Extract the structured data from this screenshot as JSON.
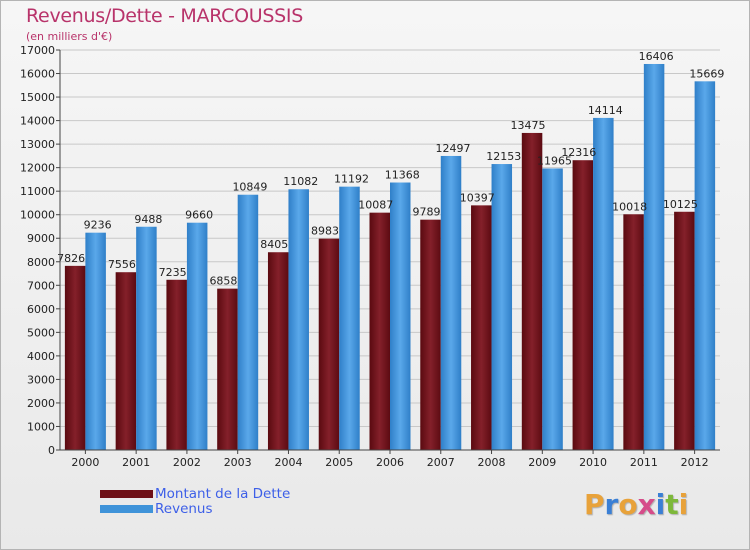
{
  "title": "Revenus/Dette - MARCOUSSIS",
  "subtitle": "(en milliers d'€)",
  "logo": {
    "letters": [
      "P",
      "r",
      "o",
      "x",
      "i",
      "t",
      "i"
    ],
    "colors": [
      "#e8a23a",
      "#3a7fd5",
      "#e8a23a",
      "#d64c8a",
      "#3a7fd5",
      "#7db83a",
      "#e8a23a"
    ]
  },
  "chart_data": {
    "type": "bar",
    "categories": [
      "2000",
      "2001",
      "2002",
      "2003",
      "2004",
      "2005",
      "2006",
      "2007",
      "2008",
      "2009",
      "2010",
      "2011",
      "2012"
    ],
    "series": [
      {
        "name": "Montant de la Dette",
        "color": "#6e1016",
        "values": [
          7826,
          7556,
          7235,
          6858,
          8405,
          8983,
          10087,
          9789,
          10397,
          13475,
          12316,
          10018,
          10125
        ],
        "labels": [
          "7826",
          "7556",
          "7235",
          "6858",
          "8405",
          "8983",
          "10087",
          "9789",
          "10397",
          "13475",
          "12316",
          "10018",
          "10125"
        ]
      },
      {
        "name": "Revenus",
        "color": "#3f93d9",
        "values": [
          9236,
          9488,
          9660,
          10849,
          11082,
          11192,
          11368,
          12497,
          12153,
          11965,
          14114,
          16406,
          15669
        ],
        "labels": [
          "9236",
          "9488",
          "9660",
          "10849",
          "11082",
          "11192",
          "11368",
          "12497",
          "12153",
          "11965",
          "14114",
          "16406",
          "15669"
        ]
      }
    ],
    "ylim": [
      0,
      17000
    ],
    "yticks": [
      "0",
      "1000",
      "2000",
      "3000",
      "4000",
      "5000",
      "6000",
      "7000",
      "8000",
      "9000",
      "10000",
      "11000",
      "12000",
      "13000",
      "14000",
      "15000",
      "16000",
      "17000"
    ],
    "grid": true,
    "legend": "bottom-left"
  }
}
